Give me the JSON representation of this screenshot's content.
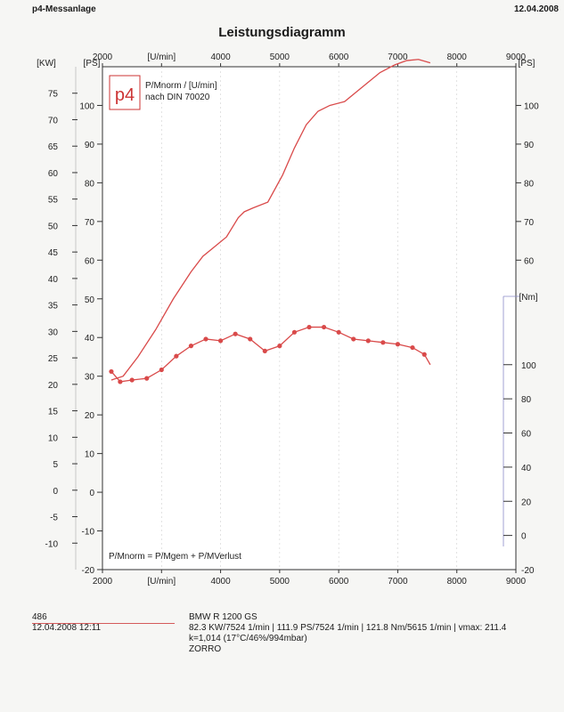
{
  "header": {
    "left": "p4-Messanlage",
    "right": "12.04.2008"
  },
  "chart_data": {
    "type": "line",
    "title": "Leistungsdiagramm",
    "x_unit_top": "[U/min]",
    "x_unit_bottom": "[U/min]",
    "xlim": [
      2000,
      9000
    ],
    "xticks": [
      2000,
      3000,
      4000,
      5000,
      6000,
      7000,
      8000,
      9000
    ],
    "ps_axis": {
      "unit": "[PS]",
      "lim": [
        -20,
        110
      ],
      "ticks": [
        -20,
        -10,
        0,
        10,
        20,
        30,
        40,
        50,
        60,
        70,
        80,
        90,
        100
      ]
    },
    "kw_axis": {
      "unit": "[KW]",
      "lim": [
        -15,
        80
      ],
      "ticks": [
        -10,
        -5,
        0,
        5,
        10,
        15,
        20,
        25,
        30,
        35,
        40,
        45,
        50,
        55,
        60,
        65,
        70,
        75
      ]
    },
    "nm_axis": {
      "unit": "[Nm]",
      "lim": [
        -20,
        140
      ],
      "ticks": [
        -20,
        0,
        20,
        40,
        60,
        80,
        100
      ]
    },
    "legend_box": {
      "line1": "P/Mnorm / [U/min]",
      "line2": "nach DIN 70020",
      "logo": "p4"
    },
    "formula": "P/Mnorm = P/Mgem + P/MVerlust",
    "series": [
      {
        "axis": "ps",
        "x": [
          2150,
          2350,
          2600,
          2900,
          3200,
          3500,
          3700,
          3900,
          4100,
          4300,
          4400,
          4550,
          4800,
          5050,
          5250,
          5450,
          5650,
          5850,
          6100,
          6300,
          6500,
          6700,
          6950,
          7150,
          7350,
          7550
        ],
        "y": [
          29,
          30,
          35,
          42,
          50,
          57,
          61,
          63.5,
          66,
          71,
          72.5,
          73.5,
          75,
          82,
          89,
          95,
          98.5,
          100,
          101,
          103.5,
          106,
          108.5,
          110.5,
          111.6,
          111.9,
          111
        ]
      },
      {
        "axis": "nm",
        "x": [
          2150,
          2300,
          2500,
          2750,
          3000,
          3250,
          3500,
          3750,
          4000,
          4250,
          4500,
          4750,
          5000,
          5250,
          5500,
          5750,
          6000,
          6250,
          6500,
          6750,
          7000,
          7250,
          7450,
          7550
        ],
        "y": [
          96,
          90,
          91,
          92,
          97,
          105,
          111,
          115,
          114,
          118,
          115,
          108,
          111,
          119,
          122,
          122,
          119,
          115,
          114,
          113,
          112,
          110,
          106,
          100
        ]
      }
    ]
  },
  "footer": {
    "id": "486",
    "datetime": "12.04.2008  12:11",
    "vehicle": "BMW R 1200 GS",
    "results": "82.3 KW/7524 1/min  |  111.9 PS/7524 1/min  |  121.8 Nm/5615 1/min | vmax: 211.4",
    "conditions": "k=1,014 (17°C/46%/994mbar)",
    "owner": "ZORRO"
  },
  "colors": {
    "curve": "#d94a4a",
    "axis": "#333333",
    "grid": "#cfcfcf"
  }
}
